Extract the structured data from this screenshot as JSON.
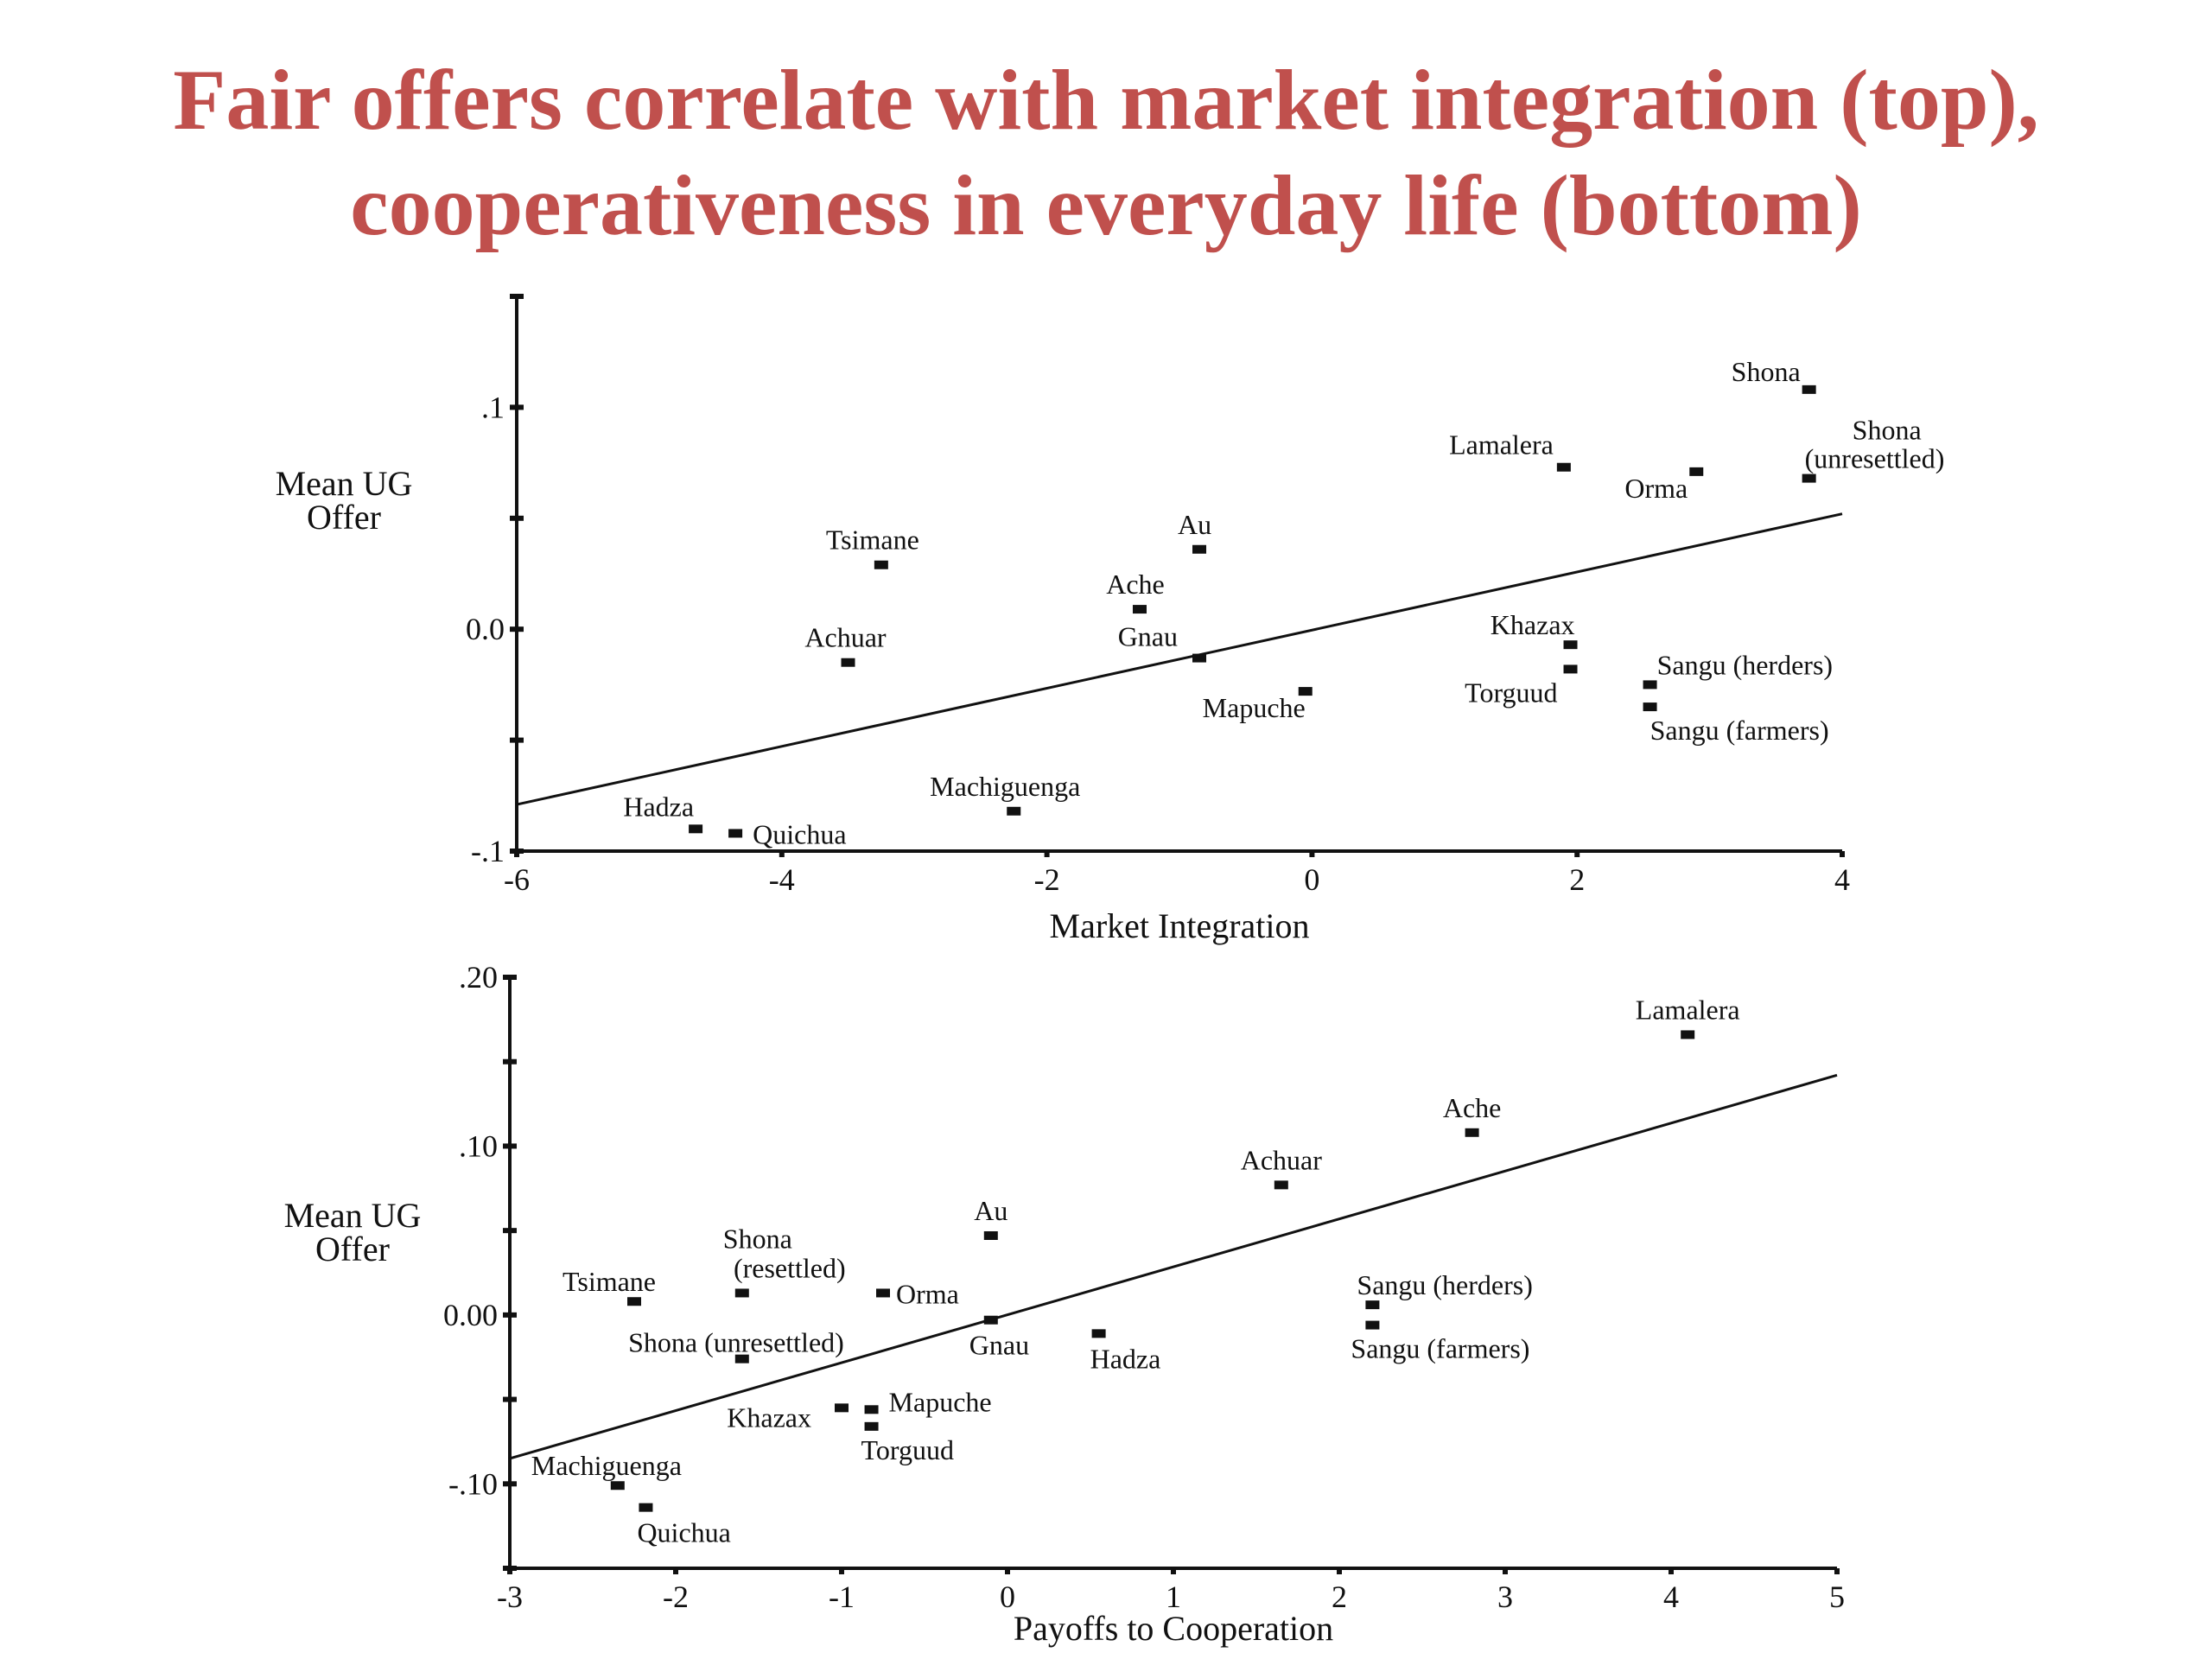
{
  "title_lines": [
    "Fair offers correlate with market integration (top),",
    "cooperativeness in everyday life (bottom)"
  ],
  "colors": {
    "title": "#c0504d",
    "ink": "#111111"
  },
  "chart_data": [
    {
      "type": "scatter",
      "xlabel": "Market Integration",
      "ylabel": "Mean UG Offer",
      "xlim": [
        -6,
        4
      ],
      "ylim": [
        -0.1,
        0.15
      ],
      "x_ticks": [
        -6,
        -4,
        -2,
        0,
        2,
        4
      ],
      "x_tick_labels": [
        "-6",
        "-4",
        "-2",
        "0",
        "2",
        "4"
      ],
      "y_ticks": [
        -0.1,
        0,
        0.1
      ],
      "y_tick_labels": [
        "-.1",
        "0.0",
        ".1"
      ],
      "y_minor_ticks": [
        -0.05,
        0.05,
        0.15
      ],
      "trendline": {
        "x": [
          -6,
          4
        ],
        "y": [
          -0.079,
          0.052
        ]
      },
      "points": [
        {
          "label": "Shona",
          "x": 3.75,
          "y": 0.108,
          "anchor": "end",
          "dx": -10,
          "dy": -10
        },
        {
          "label": "Shona",
          "x": 3.75,
          "y": 0.068,
          "anchor": "start",
          "dx": 50,
          "dy": -45
        },
        {
          "label": "(unresettled)",
          "x": 3.75,
          "y": 0.068,
          "anchor": "start",
          "dx": -5,
          "dy": -12
        },
        {
          "label": "Lamalera",
          "x": 1.9,
          "y": 0.073,
          "anchor": "end",
          "dx": -12,
          "dy": -15
        },
        {
          "label": "Orma",
          "x": 2.9,
          "y": 0.071,
          "anchor": "end",
          "dx": -10,
          "dy": 30
        },
        {
          "label": "Tsimane",
          "x": -3.25,
          "y": 0.029,
          "anchor": "middle",
          "dx": -10,
          "dy": -18
        },
        {
          "label": "Au",
          "x": -0.85,
          "y": 0.036,
          "anchor": "start",
          "dx": -25,
          "dy": -18
        },
        {
          "label": "Ache",
          "x": -1.3,
          "y": 0.009,
          "anchor": "middle",
          "dx": -5,
          "dy": -18
        },
        {
          "label": "Achuar",
          "x": -3.5,
          "y": -0.015,
          "anchor": "middle",
          "dx": -3,
          "dy": -18
        },
        {
          "label": "Gnau",
          "x": -0.85,
          "y": -0.013,
          "anchor": "end",
          "dx": -25,
          "dy": -14
        },
        {
          "label": "Khazax",
          "x": 1.95,
          "y": -0.007,
          "anchor": "end",
          "dx": 5,
          "dy": -12
        },
        {
          "label": "Torguud",
          "x": 1.95,
          "y": -0.018,
          "anchor": "end",
          "dx": -15,
          "dy": 38
        },
        {
          "label": "Mapuche",
          "x": -0.05,
          "y": -0.028,
          "anchor": "end",
          "dx": 0,
          "dy": 30
        },
        {
          "label": "Sangu (herders)",
          "x": 2.55,
          "y": -0.025,
          "anchor": "start",
          "dx": 8,
          "dy": -12
        },
        {
          "label": "Sangu (farmers)",
          "x": 2.55,
          "y": -0.035,
          "anchor": "start",
          "dx": 0,
          "dy": 38
        },
        {
          "label": "Machiguenga",
          "x": -2.25,
          "y": -0.082,
          "anchor": "middle",
          "dx": -10,
          "dy": -18
        },
        {
          "label": "Hadza",
          "x": -4.65,
          "y": -0.09,
          "anchor": "end",
          "dx": -2,
          "dy": -15
        },
        {
          "label": "Quichua",
          "x": -4.35,
          "y": -0.092,
          "anchor": "start",
          "dx": 20,
          "dy": 12
        }
      ]
    },
    {
      "type": "scatter",
      "xlabel": "Payoffs to Cooperation",
      "ylabel": "Mean UG Offer",
      "xlim": [
        -3,
        5
      ],
      "ylim": [
        -0.15,
        0.2
      ],
      "x_ticks": [
        -3,
        -2,
        -1,
        0,
        1,
        2,
        3,
        4,
        5
      ],
      "x_tick_labels": [
        "-3",
        "-2",
        "-1",
        "0",
        "1",
        "2",
        "3",
        "4",
        "5"
      ],
      "y_ticks": [
        -0.1,
        0,
        0.1,
        0.2
      ],
      "y_tick_labels": [
        "-.10",
        "0.00",
        ".10",
        ".20"
      ],
      "y_minor_ticks": [
        -0.15,
        -0.05,
        0.05,
        0.15
      ],
      "trendline": {
        "x": [
          -3,
          5
        ],
        "y": [
          -0.085,
          0.142
        ]
      },
      "points": [
        {
          "label": "Lamalera",
          "x": 4.1,
          "y": 0.166,
          "anchor": "middle",
          "dx": 0,
          "dy": -18
        },
        {
          "label": "Ache",
          "x": 2.8,
          "y": 0.108,
          "anchor": "middle",
          "dx": 0,
          "dy": -18
        },
        {
          "label": "Achuar",
          "x": 1.65,
          "y": 0.077,
          "anchor": "middle",
          "dx": 0,
          "dy": -18
        },
        {
          "label": "Au",
          "x": -0.1,
          "y": 0.047,
          "anchor": "middle",
          "dx": 0,
          "dy": -18
        },
        {
          "label": "Shona",
          "x": -1.6,
          "y": 0.013,
          "anchor": "middle",
          "dx": 18,
          "dy": -52
        },
        {
          "label": "(resettled)",
          "x": -1.6,
          "y": 0.013,
          "anchor": "middle",
          "dx": 55,
          "dy": -18
        },
        {
          "label": "Tsimane",
          "x": -2.25,
          "y": 0.008,
          "anchor": "end",
          "dx": 25,
          "dy": -12
        },
        {
          "label": "Orma",
          "x": -0.75,
          "y": 0.013,
          "anchor": "start",
          "dx": 15,
          "dy": 12
        },
        {
          "label": "Gnau",
          "x": -0.1,
          "y": -0.003,
          "anchor": "start",
          "dx": -25,
          "dy": 40
        },
        {
          "label": "Shona (unresettled)",
          "x": -1.6,
          "y": -0.026,
          "anchor": "end",
          "dx": 118,
          "dy": -8
        },
        {
          "label": "Hadza",
          "x": 0.55,
          "y": -0.011,
          "anchor": "start",
          "dx": -10,
          "dy": 40
        },
        {
          "label": "Sangu (herders)",
          "x": 2.2,
          "y": 0.006,
          "anchor": "start",
          "dx": -18,
          "dy": -12
        },
        {
          "label": "Sangu (farmers)",
          "x": 2.2,
          "y": -0.006,
          "anchor": "start",
          "dx": -25,
          "dy": 38
        },
        {
          "label": "Khazax",
          "x": -1.0,
          "y": -0.055,
          "anchor": "end",
          "dx": -35,
          "dy": 22
        },
        {
          "label": "Mapuche",
          "x": -0.82,
          "y": -0.056,
          "anchor": "start",
          "dx": 20,
          "dy": 2
        },
        {
          "label": "Torguud",
          "x": -0.82,
          "y": -0.066,
          "anchor": "start",
          "dx": -12,
          "dy": 38
        },
        {
          "label": "Machiguenga",
          "x": -2.35,
          "y": -0.101,
          "anchor": "start",
          "dx": -100,
          "dy": -12
        },
        {
          "label": "Quichua",
          "x": -2.18,
          "y": -0.114,
          "anchor": "start",
          "dx": -10,
          "dy": 40
        }
      ]
    }
  ]
}
